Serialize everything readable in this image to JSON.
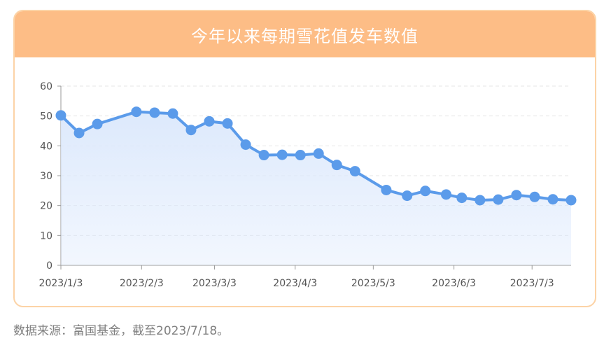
{
  "title": "今年以来每期雪花值发车数值",
  "source": "数据来源：富国基金，截至2023/7/18。",
  "colors": {
    "header": "#fdbd86",
    "border": "#fcd3a6",
    "line": "#5b9bea",
    "area": "#dbe8fc"
  },
  "chart_data": {
    "type": "area",
    "title": "今年以来每期雪花值发车数值",
    "xlabel": "",
    "ylabel": "",
    "ylim": [
      0,
      60
    ],
    "yticks": [
      0,
      10,
      20,
      30,
      40,
      50,
      60
    ],
    "xlim": [
      "2023-01-03",
      "2023-07-18"
    ],
    "xticks": [
      "2023/1/3",
      "2023/2/3",
      "2023/3/3",
      "2023/4/3",
      "2023/5/3",
      "2023/6/3",
      "2023/7/3"
    ],
    "xtick_dates": [
      "2023-01-03",
      "2023-02-03",
      "2023-03-03",
      "2023-04-03",
      "2023-05-03",
      "2023-06-03",
      "2023-07-03"
    ],
    "grid": "horizontal-dashed",
    "series": [
      {
        "x": [
          "2023-01-03",
          "2023-01-10",
          "2023-01-17",
          "2023-02-01",
          "2023-02-08",
          "2023-02-15",
          "2023-02-22",
          "2023-03-01",
          "2023-03-08",
          "2023-03-15",
          "2023-03-22",
          "2023-03-29",
          "2023-04-05",
          "2023-04-12",
          "2023-04-19",
          "2023-04-26",
          "2023-05-08",
          "2023-05-16",
          "2023-05-23",
          "2023-05-31",
          "2023-06-06",
          "2023-06-13",
          "2023-06-20",
          "2023-06-27",
          "2023-07-04",
          "2023-07-11",
          "2023-07-18"
        ],
        "values": [
          50.2,
          44.3,
          47.3,
          51.4,
          51.1,
          50.8,
          45.3,
          48.2,
          47.5,
          40.4,
          36.9,
          37.0,
          36.9,
          37.4,
          33.6,
          31.5,
          25.2,
          23.3,
          24.9,
          23.7,
          22.6,
          21.8,
          22.0,
          23.5,
          22.9,
          22.1,
          21.8
        ]
      }
    ]
  }
}
